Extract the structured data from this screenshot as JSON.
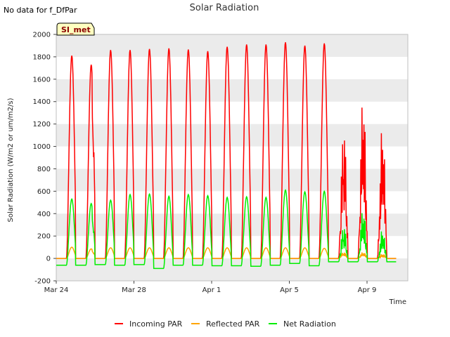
{
  "page": {
    "no_data_note": "No data for f_DfPar",
    "badge": "SI_met"
  },
  "chart_data": {
    "type": "line",
    "title": "Solar Radiation",
    "xlabel": "Time",
    "ylabel": "Solar Radiation (W/m2 or um/m2/s)",
    "ylim": [
      -200,
      2000
    ],
    "yticks": [
      -200,
      0,
      200,
      400,
      600,
      800,
      1000,
      1200,
      1400,
      1600,
      1800,
      2000
    ],
    "x_range_days": [
      0,
      18.1
    ],
    "xticks": [
      {
        "day": 0,
        "label": "Mar 24"
      },
      {
        "day": 4,
        "label": "Mar 28"
      },
      {
        "day": 8,
        "label": "Apr 1"
      },
      {
        "day": 12,
        "label": "Apr 5"
      },
      {
        "day": 16,
        "label": "Apr 9"
      }
    ],
    "grid": "horizontal bands",
    "legend_position": "bottom",
    "colors": {
      "incoming": "#ff0000",
      "reflected": "#ffa500",
      "net": "#00ee00",
      "band": "#ebebeb",
      "badge_bg": "#ffffc0"
    },
    "series": [
      {
        "name": "Incoming PAR",
        "color": "#ff0000",
        "daily_peaks": [
          1810,
          1730,
          1860,
          1860,
          1870,
          1875,
          1865,
          1850,
          1890,
          1910,
          1910,
          1930,
          1900,
          1920,
          1230,
          1520,
          1240
        ],
        "note_values": [
          1410,
          850,
          740,
          1370,
          1200
        ]
      },
      {
        "name": "Reflected PAR",
        "color": "#ffa500",
        "daily_peaks": [
          100,
          85,
          95,
          95,
          95,
          95,
          95,
          95,
          95,
          95,
          95,
          95,
          95,
          90,
          60,
          60,
          40
        ]
      },
      {
        "name": "Net Radiation",
        "color": "#00ee00",
        "daily_peaks": [
          530,
          490,
          520,
          570,
          575,
          555,
          570,
          560,
          545,
          550,
          545,
          610,
          595,
          600,
          310,
          460,
          270
        ],
        "night_values": [
          -60,
          -60,
          -55,
          -60,
          -55,
          -90,
          -60,
          -60,
          -65,
          -65,
          -70,
          -60,
          -45,
          -65,
          -30,
          -30,
          -30
        ]
      }
    ]
  }
}
